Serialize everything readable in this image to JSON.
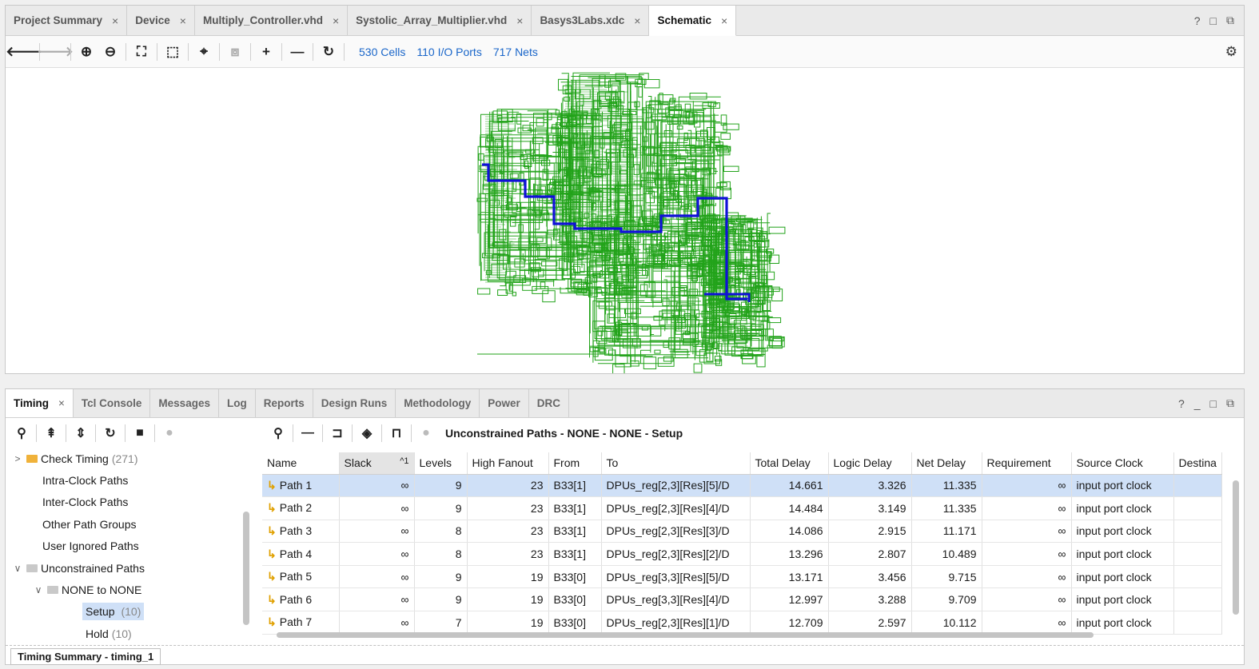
{
  "editor": {
    "tabs": [
      {
        "label": "Project Summary"
      },
      {
        "label": "Device"
      },
      {
        "label": "Multiply_Controller.vhd"
      },
      {
        "label": "Systolic_Array_Multiplier.vhd"
      },
      {
        "label": "Basys3Labs.xdc"
      },
      {
        "label": "Schematic"
      }
    ],
    "window_controls": [
      "?",
      "□",
      "⧉"
    ],
    "stats": {
      "cells": "530 Cells",
      "ports": "110 I/O Ports",
      "nets": "717 Nets"
    }
  },
  "panel": {
    "tabs": [
      "Timing",
      "Tcl Console",
      "Messages",
      "Log",
      "Reports",
      "Design Runs",
      "Methodology",
      "Power",
      "DRC"
    ],
    "window_controls": [
      "?",
      "_",
      "□",
      "⧉"
    ],
    "title": "Unconstrained Paths - NONE - NONE - Setup",
    "tree": [
      {
        "label": "Check Timing",
        "count": "(271)"
      },
      {
        "label": "Intra-Clock Paths",
        "count": ""
      },
      {
        "label": "Inter-Clock Paths",
        "count": ""
      },
      {
        "label": "Other Path Groups",
        "count": ""
      },
      {
        "label": "User Ignored Paths",
        "count": ""
      },
      {
        "label": "Unconstrained Paths",
        "count": ""
      },
      {
        "label": "NONE to NONE",
        "count": ""
      },
      {
        "label": "Setup",
        "count": "(10)"
      },
      {
        "label": "Hold",
        "count": "(10)"
      }
    ],
    "columns": [
      "Name",
      "Slack",
      "Levels",
      "High Fanout",
      "From",
      "To",
      "Total Delay",
      "Logic Delay",
      "Net Delay",
      "Requirement",
      "Source Clock",
      "Destina"
    ],
    "sort_marker": "^1",
    "rows": [
      {
        "name": "Path 1",
        "slack": "∞",
        "levels": "9",
        "fanout": "23",
        "from": "B33[1]",
        "to": "DPUs_reg[2,3][Res][5]/D",
        "total": "14.661",
        "logic": "3.326",
        "net": "11.335",
        "req": "∞",
        "src": "input port clock"
      },
      {
        "name": "Path 2",
        "slack": "∞",
        "levels": "9",
        "fanout": "23",
        "from": "B33[1]",
        "to": "DPUs_reg[2,3][Res][4]/D",
        "total": "14.484",
        "logic": "3.149",
        "net": "11.335",
        "req": "∞",
        "src": "input port clock"
      },
      {
        "name": "Path 3",
        "slack": "∞",
        "levels": "8",
        "fanout": "23",
        "from": "B33[1]",
        "to": "DPUs_reg[2,3][Res][3]/D",
        "total": "14.086",
        "logic": "2.915",
        "net": "11.171",
        "req": "∞",
        "src": "input port clock"
      },
      {
        "name": "Path 4",
        "slack": "∞",
        "levels": "8",
        "fanout": "23",
        "from": "B33[1]",
        "to": "DPUs_reg[2,3][Res][2]/D",
        "total": "13.296",
        "logic": "2.807",
        "net": "10.489",
        "req": "∞",
        "src": "input port clock"
      },
      {
        "name": "Path 5",
        "slack": "∞",
        "levels": "9",
        "fanout": "19",
        "from": "B33[0]",
        "to": "DPUs_reg[3,3][Res][5]/D",
        "total": "13.171",
        "logic": "3.456",
        "net": "9.715",
        "req": "∞",
        "src": "input port clock"
      },
      {
        "name": "Path 6",
        "slack": "∞",
        "levels": "9",
        "fanout": "19",
        "from": "B33[0]",
        "to": "DPUs_reg[3,3][Res][4]/D",
        "total": "12.997",
        "logic": "3.288",
        "net": "9.709",
        "req": "∞",
        "src": "input port clock"
      },
      {
        "name": "Path 7",
        "slack": "∞",
        "levels": "7",
        "fanout": "19",
        "from": "B33[0]",
        "to": "DPUs_reg[2,3][Res][1]/D",
        "total": "12.709",
        "logic": "2.597",
        "net": "10.112",
        "req": "∞",
        "src": "input port clock"
      }
    ],
    "summary_tab": "Timing Summary - timing_1"
  },
  "colors": {
    "accent": "#1a66c9",
    "schematic": "#22a31a",
    "critical_path": "#1010d8",
    "selection": "#cfe0f7"
  }
}
